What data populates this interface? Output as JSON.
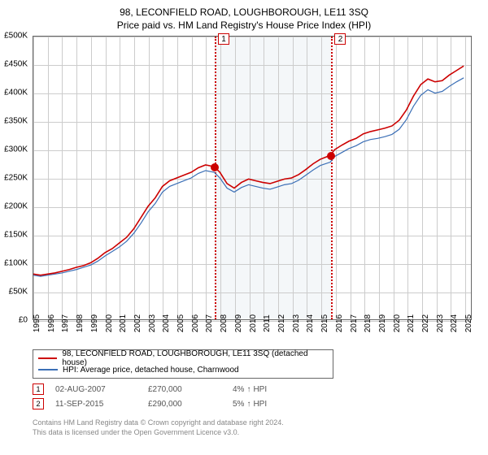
{
  "title": "98, LECONFIELD ROAD, LOUGHBOROUGH, LE11 3SQ",
  "subtitle": "Price paid vs. HM Land Registry's House Price Index (HPI)",
  "chart": {
    "type": "line",
    "xlim": [
      1995,
      2025.5
    ],
    "ylim": [
      0,
      500000
    ],
    "ytick_step": 50000,
    "yticks": [
      0,
      50000,
      100000,
      150000,
      200000,
      250000,
      300000,
      350000,
      400000,
      450000,
      500000
    ],
    "ytick_labels": [
      "£0",
      "£50K",
      "£100K",
      "£150K",
      "£200K",
      "£250K",
      "£300K",
      "£350K",
      "£400K",
      "£450K",
      "£500K"
    ],
    "xticks": [
      1995,
      1996,
      1997,
      1998,
      1999,
      2000,
      2001,
      2002,
      2003,
      2004,
      2005,
      2006,
      2007,
      2008,
      2009,
      2010,
      2011,
      2012,
      2013,
      2014,
      2015,
      2016,
      2017,
      2018,
      2019,
      2020,
      2021,
      2022,
      2023,
      2024,
      2025
    ],
    "grid_color": "#cccccc",
    "background_color": "#ffffff",
    "band_color": "#f4f7f9",
    "band_start": 2007.6,
    "band_end": 2015.7,
    "series": [
      {
        "name": "property",
        "color": "#cc0000",
        "width": 1.6,
        "points": [
          [
            1995,
            80000
          ],
          [
            1995.5,
            78000
          ],
          [
            1996,
            80000
          ],
          [
            1996.5,
            82000
          ],
          [
            1997,
            85000
          ],
          [
            1997.5,
            88000
          ],
          [
            1998,
            92000
          ],
          [
            1998.5,
            95000
          ],
          [
            1999,
            100000
          ],
          [
            1999.5,
            108000
          ],
          [
            2000,
            118000
          ],
          [
            2000.5,
            125000
          ],
          [
            2001,
            135000
          ],
          [
            2001.5,
            145000
          ],
          [
            2002,
            160000
          ],
          [
            2002.5,
            180000
          ],
          [
            2003,
            200000
          ],
          [
            2003.5,
            215000
          ],
          [
            2004,
            235000
          ],
          [
            2004.5,
            245000
          ],
          [
            2005,
            250000
          ],
          [
            2005.5,
            255000
          ],
          [
            2006,
            260000
          ],
          [
            2006.5,
            268000
          ],
          [
            2007,
            273000
          ],
          [
            2007.6,
            270000
          ],
          [
            2008,
            260000
          ],
          [
            2008.5,
            240000
          ],
          [
            2009,
            232000
          ],
          [
            2009.5,
            242000
          ],
          [
            2010,
            248000
          ],
          [
            2010.5,
            245000
          ],
          [
            2011,
            242000
          ],
          [
            2011.5,
            240000
          ],
          [
            2012,
            244000
          ],
          [
            2012.5,
            248000
          ],
          [
            2013,
            250000
          ],
          [
            2013.5,
            256000
          ],
          [
            2014,
            265000
          ],
          [
            2014.5,
            275000
          ],
          [
            2015,
            283000
          ],
          [
            2015.7,
            290000
          ],
          [
            2016,
            300000
          ],
          [
            2016.5,
            308000
          ],
          [
            2017,
            315000
          ],
          [
            2017.5,
            320000
          ],
          [
            2018,
            328000
          ],
          [
            2018.5,
            332000
          ],
          [
            2019,
            335000
          ],
          [
            2019.5,
            338000
          ],
          [
            2020,
            342000
          ],
          [
            2020.5,
            352000
          ],
          [
            2021,
            370000
          ],
          [
            2021.5,
            395000
          ],
          [
            2022,
            415000
          ],
          [
            2022.5,
            425000
          ],
          [
            2023,
            420000
          ],
          [
            2023.5,
            422000
          ],
          [
            2024,
            432000
          ],
          [
            2024.5,
            440000
          ],
          [
            2025,
            448000
          ]
        ]
      },
      {
        "name": "hpi",
        "color": "#3b6fb6",
        "width": 1.2,
        "points": [
          [
            1995,
            78000
          ],
          [
            1995.5,
            76000
          ],
          [
            1996,
            78000
          ],
          [
            1996.5,
            80000
          ],
          [
            1997,
            82000
          ],
          [
            1997.5,
            85000
          ],
          [
            1998,
            88000
          ],
          [
            1998.5,
            92000
          ],
          [
            1999,
            96000
          ],
          [
            1999.5,
            103000
          ],
          [
            2000,
            112000
          ],
          [
            2000.5,
            120000
          ],
          [
            2001,
            128000
          ],
          [
            2001.5,
            138000
          ],
          [
            2002,
            152000
          ],
          [
            2002.5,
            170000
          ],
          [
            2003,
            190000
          ],
          [
            2003.5,
            205000
          ],
          [
            2004,
            225000
          ],
          [
            2004.5,
            235000
          ],
          [
            2005,
            240000
          ],
          [
            2005.5,
            245000
          ],
          [
            2006,
            250000
          ],
          [
            2006.5,
            258000
          ],
          [
            2007,
            263000
          ],
          [
            2007.6,
            260000
          ],
          [
            2008,
            250000
          ],
          [
            2008.5,
            232000
          ],
          [
            2009,
            225000
          ],
          [
            2009.5,
            233000
          ],
          [
            2010,
            238000
          ],
          [
            2010.5,
            235000
          ],
          [
            2011,
            232000
          ],
          [
            2011.5,
            230000
          ],
          [
            2012,
            234000
          ],
          [
            2012.5,
            238000
          ],
          [
            2013,
            240000
          ],
          [
            2013.5,
            246000
          ],
          [
            2014,
            255000
          ],
          [
            2014.5,
            264000
          ],
          [
            2015,
            272000
          ],
          [
            2015.7,
            278000
          ],
          [
            2016,
            288000
          ],
          [
            2016.5,
            295000
          ],
          [
            2017,
            302000
          ],
          [
            2017.5,
            307000
          ],
          [
            2018,
            314000
          ],
          [
            2018.5,
            318000
          ],
          [
            2019,
            320000
          ],
          [
            2019.5,
            323000
          ],
          [
            2020,
            327000
          ],
          [
            2020.5,
            336000
          ],
          [
            2021,
            353000
          ],
          [
            2021.5,
            377000
          ],
          [
            2022,
            396000
          ],
          [
            2022.5,
            406000
          ],
          [
            2023,
            400000
          ],
          [
            2023.5,
            403000
          ],
          [
            2024,
            412000
          ],
          [
            2024.5,
            420000
          ],
          [
            2025,
            427000
          ]
        ]
      }
    ],
    "markers": [
      {
        "id": "1",
        "x": 2007.6,
        "y": 270000,
        "color": "#cc0000"
      },
      {
        "id": "2",
        "x": 2015.7,
        "y": 290000,
        "color": "#cc0000"
      }
    ]
  },
  "legend": {
    "items": [
      {
        "color": "#cc0000",
        "label": "98, LECONFIELD ROAD, LOUGHBOROUGH, LE11 3SQ (detached house)"
      },
      {
        "color": "#3b6fb6",
        "label": "HPI: Average price, detached house, Charnwood"
      }
    ]
  },
  "events": [
    {
      "id": "1",
      "color": "#cc0000",
      "date": "02-AUG-2007",
      "price": "£270,000",
      "pct": "4%",
      "arrow": "↑",
      "note": "HPI"
    },
    {
      "id": "2",
      "color": "#cc0000",
      "date": "11-SEP-2015",
      "price": "£290,000",
      "pct": "5%",
      "arrow": "↑",
      "note": "HPI"
    }
  ],
  "footer": {
    "line1": "Contains HM Land Registry data © Crown copyright and database right 2024.",
    "line2": "This data is licensed under the Open Government Licence v3.0."
  }
}
